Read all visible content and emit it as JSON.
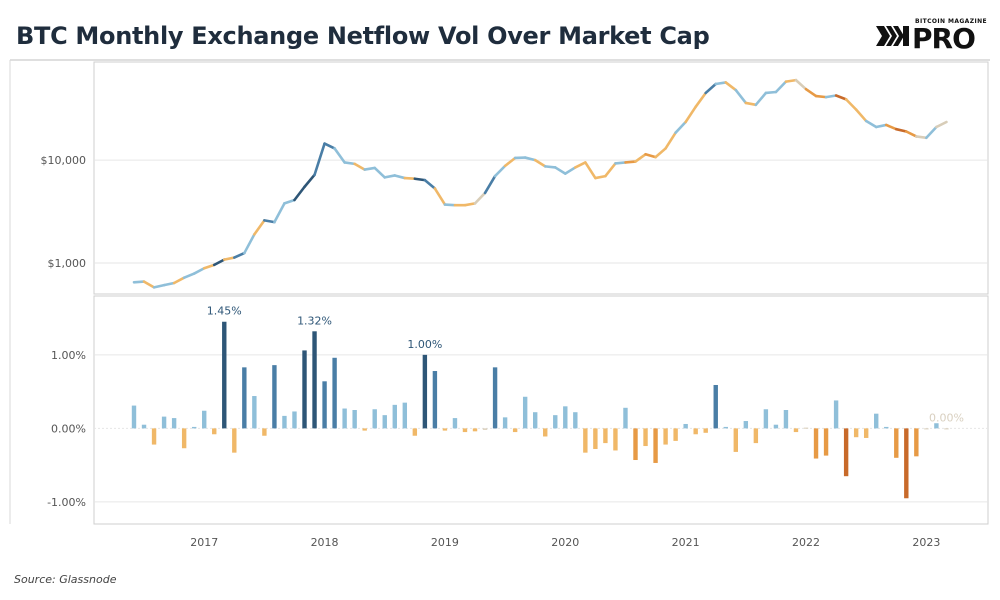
{
  "title": "BTC Monthly Exchange Netflow Vol Over Market Cap",
  "source": "Source: Glassnode",
  "logo": {
    "small_text": "BITCOIN MAGAZINE",
    "big_text": "PRO"
  },
  "colors": {
    "dark_blue": "#2e5677",
    "mid_blue": "#4a7ea6",
    "light_blue": "#8fbfd9",
    "pale": "#d8cdb8",
    "light_orange": "#f0b868",
    "orange": "#e79a45",
    "dark_orange": "#c86a2a",
    "grid": "#e6e6e6",
    "axis_text": "#555555"
  },
  "chart_data": [
    {
      "type": "line",
      "yscale": "log",
      "ylim": [
        500,
        90000
      ],
      "yticks": [
        1000,
        10000
      ],
      "ytick_labels": [
        "$1,000",
        "$10,000"
      ],
      "x_start": "2016-06",
      "x": [
        "2016-06",
        "2016-07",
        "2016-08",
        "2016-09",
        "2016-10",
        "2016-11",
        "2016-12",
        "2017-01",
        "2017-02",
        "2017-03",
        "2017-04",
        "2017-05",
        "2017-06",
        "2017-07",
        "2017-08",
        "2017-09",
        "2017-10",
        "2017-11",
        "2017-12",
        "2018-01",
        "2018-02",
        "2018-03",
        "2018-04",
        "2018-05",
        "2018-06",
        "2018-07",
        "2018-08",
        "2018-09",
        "2018-10",
        "2018-11",
        "2018-12",
        "2019-01",
        "2019-02",
        "2019-03",
        "2019-04",
        "2019-05",
        "2019-06",
        "2019-07",
        "2019-08",
        "2019-09",
        "2019-10",
        "2019-11",
        "2019-12",
        "2020-01",
        "2020-02",
        "2020-03",
        "2020-04",
        "2020-05",
        "2020-06",
        "2020-07",
        "2020-08",
        "2020-09",
        "2020-10",
        "2020-11",
        "2020-12",
        "2021-01",
        "2021-02",
        "2021-03",
        "2021-04",
        "2021-05",
        "2021-06",
        "2021-07",
        "2021-08",
        "2021-09",
        "2021-10",
        "2021-11",
        "2021-12",
        "2022-01",
        "2022-02",
        "2022-03",
        "2022-04",
        "2022-05",
        "2022-06",
        "2022-07",
        "2022-08",
        "2022-09",
        "2022-10",
        "2022-11",
        "2022-12",
        "2023-01",
        "2023-02",
        "2023-03"
      ],
      "values": [
        650,
        660,
        580,
        610,
        640,
        720,
        790,
        890,
        960,
        1080,
        1130,
        1250,
        1900,
        2600,
        2500,
        3800,
        4100,
        5500,
        7200,
        14500,
        13000,
        9500,
        9200,
        8100,
        8400,
        6800,
        7100,
        6700,
        6600,
        6400,
        5300,
        3700,
        3650,
        3650,
        3800,
        4800,
        7000,
        8800,
        10500,
        10600,
        10000,
        8700,
        8500,
        7400,
        8500,
        9500,
        6700,
        7000,
        9300,
        9500,
        9700,
        11400,
        10700,
        13000,
        18500,
        23500,
        33000,
        45000,
        55000,
        57000,
        48000,
        36000,
        34500,
        45000,
        46000,
        58000,
        60000,
        49000,
        42000,
        41000,
        42500,
        39000,
        31000,
        24000,
        21000,
        22000,
        20000,
        19000,
        17000,
        16500,
        21000,
        23500
      ]
    },
    {
      "type": "bar",
      "ylim": [
        -1.3,
        1.8
      ],
      "yticks": [
        -1.0,
        0.0,
        1.0
      ],
      "ytick_labels": [
        "-1.00%",
        "0.00%",
        "1.00%"
      ],
      "x": [
        "2016-06",
        "2016-07",
        "2016-08",
        "2016-09",
        "2016-10",
        "2016-11",
        "2016-12",
        "2017-01",
        "2017-02",
        "2017-03",
        "2017-04",
        "2017-05",
        "2017-06",
        "2017-07",
        "2017-08",
        "2017-09",
        "2017-10",
        "2017-11",
        "2017-12",
        "2018-01",
        "2018-02",
        "2018-03",
        "2018-04",
        "2018-05",
        "2018-06",
        "2018-07",
        "2018-08",
        "2018-09",
        "2018-10",
        "2018-11",
        "2018-12",
        "2019-01",
        "2019-02",
        "2019-03",
        "2019-04",
        "2019-05",
        "2019-06",
        "2019-07",
        "2019-08",
        "2019-09",
        "2019-10",
        "2019-11",
        "2019-12",
        "2020-01",
        "2020-02",
        "2020-03",
        "2020-04",
        "2020-05",
        "2020-06",
        "2020-07",
        "2020-08",
        "2020-09",
        "2020-10",
        "2020-11",
        "2020-12",
        "2021-01",
        "2021-02",
        "2021-03",
        "2021-04",
        "2021-05",
        "2021-06",
        "2021-07",
        "2021-08",
        "2021-09",
        "2021-10",
        "2021-11",
        "2021-12",
        "2022-01",
        "2022-02",
        "2022-03",
        "2022-04",
        "2022-05",
        "2022-06",
        "2022-07",
        "2022-08",
        "2022-09",
        "2022-10",
        "2022-11",
        "2022-12",
        "2023-01",
        "2023-02",
        "2023-03"
      ],
      "values": [
        0.31,
        0.05,
        -0.22,
        0.16,
        0.14,
        -0.27,
        0.02,
        0.24,
        -0.08,
        1.45,
        -0.33,
        0.83,
        0.44,
        -0.1,
        0.86,
        0.17,
        0.23,
        1.06,
        1.32,
        0.64,
        0.96,
        0.27,
        0.25,
        -0.03,
        0.26,
        0.18,
        0.32,
        0.35,
        -0.1,
        1.0,
        0.78,
        -0.03,
        0.14,
        -0.05,
        -0.04,
        -0.02,
        0.83,
        0.15,
        -0.05,
        0.43,
        0.22,
        -0.11,
        0.18,
        0.3,
        0.22,
        -0.33,
        -0.28,
        -0.2,
        -0.3,
        0.28,
        -0.43,
        -0.24,
        -0.47,
        -0.22,
        -0.17,
        0.06,
        -0.08,
        -0.06,
        0.59,
        0.02,
        -0.32,
        0.1,
        -0.2,
        0.26,
        0.05,
        0.25,
        -0.05,
        0.01,
        -0.41,
        -0.37,
        0.38,
        -0.65,
        -0.12,
        -0.13,
        0.2,
        0.02,
        -0.4,
        -0.95,
        -0.38,
        -0.01,
        0.07,
        0.0
      ],
      "annotations": [
        {
          "x": "2017-03",
          "label": "1.45%"
        },
        {
          "x": "2017-12",
          "label": "1.32%"
        },
        {
          "x": "2018-11",
          "label": "1.00%"
        },
        {
          "x": "2023-03",
          "label": "0.00%"
        }
      ]
    }
  ],
  "xaxis": {
    "year_ticks": [
      "2017-01",
      "2018-01",
      "2019-01",
      "2020-01",
      "2021-01",
      "2022-01",
      "2023-01"
    ],
    "year_labels": [
      "2017",
      "2018",
      "2019",
      "2020",
      "2021",
      "2022",
      "2023"
    ]
  }
}
